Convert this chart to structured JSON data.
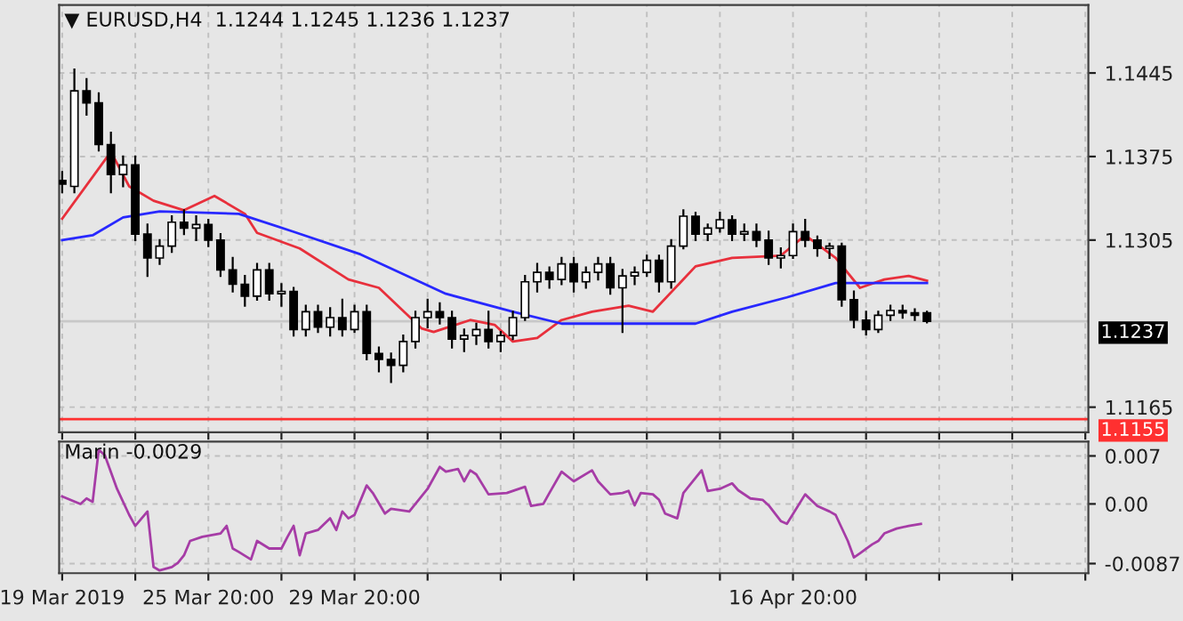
{
  "chart_data": [
    {
      "type": "candlestick",
      "title": "▼ EURUSD,H4  1.1244 1.1245 1.1236 1.1237",
      "grid": true,
      "legend": false,
      "tick_labels": "y",
      "categories": [
        null,
        null,
        null,
        null,
        null,
        null,
        null,
        null,
        null,
        null,
        null,
        null,
        null,
        null,
        null,
        null,
        null,
        null,
        null,
        null,
        null,
        null,
        null,
        null,
        null,
        null,
        null,
        null,
        null,
        null,
        null,
        null,
        null,
        null,
        null,
        null,
        null,
        null,
        null,
        null,
        null,
        null,
        null,
        null,
        null,
        null,
        null,
        null,
        null,
        null,
        null,
        null,
        null,
        null,
        null,
        null,
        null,
        null,
        null,
        null,
        null,
        null,
        null,
        null,
        null,
        null,
        null,
        null,
        null,
        null,
        null,
        null,
        null,
        null,
        null,
        null,
        null,
        null,
        null,
        null,
        null,
        null,
        null,
        null,
        null,
        null,
        null,
        null,
        null,
        null,
        null,
        null,
        null,
        null,
        null,
        null,
        null,
        null,
        null,
        null,
        null,
        null,
        null,
        null,
        null,
        null,
        null,
        null,
        null,
        null,
        null,
        null,
        null,
        null,
        null,
        null,
        null,
        null,
        null,
        null,
        null,
        null,
        null,
        null,
        null,
        null,
        null,
        null,
        null,
        null,
        null,
        null,
        null,
        null,
        null,
        null,
        null,
        null,
        null,
        null,
        null,
        null,
        null,
        null,
        null,
        null,
        null,
        null,
        null,
        null,
        null,
        null,
        null,
        null,
        null,
        null,
        null,
        null,
        null,
        null,
        null,
        null,
        null,
        null,
        null,
        null,
        null,
        null,
        null
      ],
      "ylim": [
        1.1144,
        1.1502
      ],
      "yticks": [
        1.1445,
        1.1375,
        1.1305,
        1.1165
      ],
      "ref_lines": [
        {
          "axis": "y",
          "value": 1.1237,
          "label": "1.1237",
          "color": "#c8c8c8"
        },
        {
          "axis": "y",
          "value": 1.1155,
          "label": "1.1155",
          "color": "#ff3030"
        }
      ],
      "series": [
        {
          "type": "candlestick",
          "color": "#000000",
          "ohlc": [
            [
              1.1355,
              1.1362,
              1.1345,
              1.1352
            ],
            null,
            [
              1.135,
              1.1448,
              1.1345,
              1.143
            ],
            null,
            [
              1.143,
              1.144,
              1.141,
              1.142
            ],
            null,
            [
              1.142,
              1.1428,
              1.138,
              1.1385
            ],
            null,
            [
              1.1385,
              1.1395,
              1.1345,
              1.136
            ],
            null,
            [
              1.136,
              1.1375,
              1.135,
              1.1368
            ],
            null,
            [
              1.1368,
              1.1375,
              1.1305,
              1.131
            ],
            null,
            [
              1.131,
              1.1318,
              1.1275,
              1.129
            ],
            null,
            [
              1.129,
              1.1305,
              1.1285,
              1.13
            ],
            null,
            [
              1.13,
              1.1325,
              1.1295,
              1.132
            ],
            null,
            [
              1.132,
              1.133,
              1.131,
              1.1315
            ],
            null,
            [
              1.1315,
              1.1325,
              1.1305,
              1.1318
            ],
            null,
            [
              1.1318,
              1.1322,
              1.13,
              1.1305
            ],
            null,
            [
              1.1305,
              1.131,
              1.1275,
              1.128
            ],
            null,
            [
              1.128,
              1.129,
              1.1262,
              1.1268
            ],
            null,
            [
              1.1268,
              1.1275,
              1.125,
              1.1258
            ],
            null,
            [
              1.1258,
              1.1285,
              1.1255,
              1.128
            ],
            null,
            [
              1.128,
              1.1285,
              1.1255,
              1.126
            ],
            null,
            [
              1.126,
              1.1268,
              1.125,
              1.1262
            ],
            null,
            [
              1.1262,
              1.1265,
              1.1225,
              1.123
            ],
            null,
            [
              1.123,
              1.125,
              1.1225,
              1.1245
            ],
            null,
            [
              1.1245,
              1.125,
              1.1228,
              1.1232
            ],
            null,
            [
              1.1232,
              1.1248,
              1.1225,
              1.124
            ],
            null,
            [
              1.124,
              1.1255,
              1.1225,
              1.123
            ],
            null,
            [
              1.123,
              1.125,
              1.1228,
              1.1245
            ],
            null,
            [
              1.1245,
              1.125,
              1.1205,
              1.121
            ],
            null,
            [
              1.121,
              1.1215,
              1.1195,
              1.1205
            ],
            null,
            [
              1.1205,
              1.121,
              1.1186,
              1.12
            ],
            null,
            [
              1.12,
              1.1225,
              1.1195,
              1.122
            ],
            null,
            [
              1.122,
              1.1245,
              1.1215,
              1.124
            ],
            null,
            [
              1.124,
              1.1255,
              1.1232,
              1.1245
            ],
            null,
            [
              1.1245,
              1.1252,
              1.1235,
              1.124
            ],
            null,
            [
              1.124,
              1.1245,
              1.1215,
              1.1222
            ],
            null,
            [
              1.1222,
              1.123,
              1.1212,
              1.1225
            ],
            null,
            [
              1.1225,
              1.1235,
              1.1218,
              1.123
            ],
            null,
            [
              1.123,
              1.1245,
              1.1215,
              1.122
            ],
            null,
            [
              1.122,
              1.1228,
              1.1212,
              1.1225
            ],
            null,
            [
              1.1225,
              1.1245,
              1.1222,
              1.124
            ],
            null,
            [
              1.124,
              1.1275,
              1.1238,
              1.127
            ],
            null,
            [
              1.127,
              1.1285,
              1.1262,
              1.1278
            ],
            null,
            [
              1.1278,
              1.1282,
              1.1265,
              1.1272
            ],
            null,
            [
              1.1272,
              1.129,
              1.1268,
              1.1285
            ],
            null,
            [
              1.1285,
              1.129,
              1.1262,
              1.127
            ],
            null,
            [
              1.127,
              1.1282,
              1.1265,
              1.1278
            ],
            null,
            [
              1.1278,
              1.129,
              1.1272,
              1.1285
            ],
            null,
            [
              1.1285,
              1.129,
              1.126,
              1.1265
            ],
            null,
            [
              1.1265,
              1.128,
              1.1228,
              1.1275
            ],
            null,
            [
              1.1275,
              1.1282,
              1.1268,
              1.1278
            ],
            null,
            [
              1.1278,
              1.1292,
              1.1275,
              1.1288
            ],
            null,
            [
              1.1288,
              1.1292,
              1.1262,
              1.127
            ],
            null,
            [
              1.127,
              1.1305,
              1.1265,
              1.13
            ],
            null,
            [
              1.13,
              1.133,
              1.1298,
              1.1325
            ],
            null,
            [
              1.1325,
              1.1328,
              1.1305,
              1.131
            ],
            null,
            [
              1.131,
              1.1318,
              1.1305,
              1.1315
            ],
            null,
            [
              1.1315,
              1.1328,
              1.1312,
              1.1322
            ],
            null,
            [
              1.1322,
              1.1325,
              1.1305,
              1.131
            ],
            null,
            [
              1.131,
              1.1318,
              1.1305,
              1.1312
            ],
            null,
            [
              1.1312,
              1.1318,
              1.13,
              1.1305
            ],
            null,
            [
              1.1305,
              1.1312,
              1.1285,
              1.129
            ],
            null,
            [
              1.129,
              1.1298,
              1.1282,
              1.1292
            ],
            null,
            [
              1.1292,
              1.1318,
              1.129,
              1.1312
            ],
            null,
            [
              1.1312,
              1.1322,
              1.13,
              1.1305
            ],
            null,
            [
              1.1305,
              1.1308,
              1.1292,
              1.1298
            ],
            null,
            [
              1.1298,
              1.1302,
              1.129,
              1.13
            ],
            null,
            [
              1.13,
              1.1302,
              1.125,
              1.1255
            ],
            null,
            [
              1.1255,
              1.1262,
              1.1232,
              1.1238
            ],
            null,
            [
              1.1238,
              1.1245,
              1.1226,
              1.123
            ],
            null,
            [
              1.123,
              1.1245,
              1.1228,
              1.1242
            ],
            null,
            [
              1.1242,
              1.125,
              1.1238,
              1.1246
            ],
            null,
            [
              1.1246,
              1.125,
              1.124,
              1.1244
            ],
            null,
            [
              1.1244,
              1.1247,
              1.1238,
              1.1242
            ],
            null,
            [
              1.1244,
              1.1245,
              1.1236,
              1.1237
            ],
            null,
            null,
            null,
            null,
            null,
            null,
            null,
            null,
            null,
            null,
            null,
            null,
            null,
            null,
            null,
            null,
            null,
            null,
            null,
            null,
            null,
            null,
            null,
            null,
            null,
            null
          ]
        },
        {
          "type": "line",
          "color": "#e8303c",
          "values": [
            1.1323,
            null,
            null,
            null,
            null,
            null,
            null,
            null,
            1.1379,
            null,
            null,
            1.135,
            null,
            null,
            null,
            1.1338,
            null,
            null,
            null,
            null,
            1.133,
            null,
            null,
            null,
            null,
            1.1342,
            null,
            null,
            null,
            null,
            1.1327,
            null,
            1.1311,
            null,
            null,
            null,
            null,
            null,
            null,
            1.1298,
            null,
            null,
            null,
            null,
            null,
            null,
            null,
            1.1272,
            null,
            null,
            null,
            null,
            1.1265,
            null,
            null,
            null,
            null,
            null,
            null,
            1.1231,
            null,
            1.1228,
            null,
            null,
            null,
            null,
            null,
            1.1238,
            null,
            null,
            null,
            1.1234,
            null,
            null,
            1.122,
            null,
            null,
            null,
            1.1223,
            null,
            null,
            null,
            1.1238,
            null,
            null,
            null,
            null,
            1.1245,
            null,
            null,
            null,
            null,
            null,
            1.125,
            null,
            null,
            null,
            1.1245,
            null,
            null,
            null,
            null,
            null,
            null,
            1.1283,
            null,
            null,
            null,
            null,
            null,
            1.129,
            null,
            null,
            null,
            null,
            null,
            null,
            null,
            1.1292,
            null,
            null,
            null,
            1.1309,
            null,
            null,
            null,
            null,
            1.129,
            null,
            null,
            null,
            1.1265,
            null,
            null,
            null,
            1.1272,
            null,
            null,
            null,
            1.1275,
            null,
            null,
            1.1271,
            null,
            null,
            null,
            null,
            null,
            null,
            null,
            null,
            null,
            null,
            null,
            null,
            null,
            null,
            null,
            null,
            null,
            null,
            null,
            null,
            null,
            null,
            null,
            null,
            null,
            null
          ]
        },
        {
          "type": "line",
          "color": "#2828ff",
          "values": [
            1.1305,
            null,
            null,
            null,
            null,
            1.1309,
            null,
            null,
            null,
            null,
            1.1324,
            null,
            null,
            null,
            null,
            null,
            1.1329,
            null,
            null,
            null,
            null,
            null,
            null,
            null,
            null,
            null,
            null,
            null,
            null,
            1.1327,
            null,
            null,
            null,
            null,
            null,
            null,
            null,
            null,
            1.1312,
            null,
            null,
            null,
            null,
            null,
            null,
            null,
            null,
            null,
            null,
            1.1293,
            null,
            null,
            null,
            null,
            null,
            null,
            null,
            null,
            null,
            null,
            null,
            null,
            null,
            1.126,
            null,
            null,
            null,
            null,
            null,
            null,
            null,
            null,
            null,
            null,
            1.1245,
            null,
            null,
            null,
            null,
            null,
            null,
            null,
            1.1235,
            null,
            null,
            null,
            null,
            null,
            null,
            null,
            null,
            null,
            null,
            null,
            null,
            null,
            1.1235,
            null,
            null,
            null,
            null,
            null,
            null,
            null,
            1.1235,
            null,
            null,
            null,
            null,
            null,
            1.1245,
            null,
            null,
            null,
            null,
            null,
            null,
            null,
            null,
            1.1257,
            null,
            null,
            null,
            null,
            null,
            null,
            null,
            1.1269,
            null,
            null,
            null,
            null,
            null,
            null,
            null,
            null,
            null,
            null,
            null,
            null,
            null,
            null,
            1.1269,
            null,
            null,
            null,
            null,
            null,
            null,
            null,
            null,
            null,
            null,
            null,
            null,
            null,
            null,
            null,
            null,
            null,
            null,
            null,
            null,
            null,
            null,
            null,
            null,
            null,
            null
          ]
        }
      ]
    },
    {
      "type": "line",
      "title": "Marin -0.0029",
      "grid": true,
      "legend": false,
      "categories": [
        "19 Mar 2019",
        null,
        null,
        null,
        null,
        null,
        null,
        null,
        null,
        null,
        null,
        null,
        null,
        null,
        null,
        null,
        null,
        null,
        null,
        null,
        null,
        null,
        null,
        null,
        "25 Mar 20:00",
        null,
        null,
        null,
        null,
        null,
        null,
        null,
        null,
        null,
        null,
        null,
        null,
        null,
        null,
        null,
        null,
        null,
        null,
        null,
        null,
        null,
        null,
        null,
        "29 Mar 20:00",
        null,
        null,
        null,
        null,
        null,
        null,
        null,
        null,
        null,
        null,
        null,
        null,
        null,
        null,
        null,
        null,
        null,
        null,
        null,
        null,
        null,
        null,
        null,
        null,
        null,
        null,
        null,
        null,
        null,
        null,
        null,
        null,
        null,
        null,
        null,
        null,
        null,
        null,
        null,
        null,
        null,
        null,
        null,
        null,
        null,
        null,
        null,
        null,
        null,
        null,
        null,
        null,
        null,
        null,
        null,
        null,
        null,
        null,
        null,
        null,
        null,
        null,
        null,
        null,
        null,
        null,
        null,
        null,
        null,
        null,
        null,
        "16 Apr 20:00",
        null,
        null,
        null,
        null,
        null,
        null,
        null,
        null,
        null,
        null,
        null,
        null,
        null,
        null,
        null,
        null,
        null,
        null,
        null,
        null,
        null,
        null,
        null,
        null,
        null,
        null,
        null,
        null,
        null,
        null,
        null,
        null,
        null,
        null,
        null,
        null,
        null,
        null,
        null,
        null,
        null,
        null,
        null,
        null,
        null,
        null,
        null,
        null
      ],
      "ylim": [
        -0.0101,
        0.0091
      ],
      "yticks": [
        0.007,
        {
          "value": 0,
          "label": "0.00"
        },
        {
          "value": -0.0087,
          "label": "-0.0087"
        }
      ],
      "series": [
        {
          "color": "#a63ca6",
          "values": [
            0.0011,
            null,
            null,
            0.0,
            0.0008,
            0.0003,
            0.0079,
            0.0071,
            null,
            0.0022,
            null,
            -0.0016,
            -0.0032,
            null,
            -0.0011,
            -0.0092,
            -0.0097,
            null,
            -0.0092,
            -0.0086,
            -0.0075,
            -0.0054,
            null,
            -0.0048,
            null,
            null,
            -0.0043,
            -0.0032,
            -0.0065,
            -0.007,
            null,
            -0.0081,
            -0.0054,
            null,
            -0.0065,
            null,
            -0.0065,
            -0.0048,
            -0.0032,
            -0.0075,
            -0.0043,
            null,
            -0.0038,
            null,
            -0.0021,
            -0.0038,
            -0.0011,
            -0.0021,
            -0.0016,
            null,
            0.0027,
            0.0016,
            null,
            -0.0014,
            -0.0007,
            null,
            null,
            -0.0011,
            0.0,
            null,
            0.0022,
            null,
            0.0054,
            0.0047,
            null,
            0.0051,
            0.0033,
            0.0049,
            0.0043,
            null,
            0.0014,
            null,
            null,
            0.0016,
            null,
            null,
            0.0025,
            -0.0003,
            null,
            0.0,
            0.0016,
            null,
            0.0047,
            null,
            0.0033,
            null,
            null,
            0.0049,
            0.0033,
            null,
            0.0014,
            null,
            0.0016,
            0.0019,
            -0.0002,
            0.0016,
            null,
            0.0014,
            0.0006,
            -0.0014,
            null,
            -0.0021,
            0.0016,
            0.0027,
            null,
            0.0049,
            0.0019,
            null,
            0.0022,
            null,
            0.003,
            0.002,
            null,
            0.0008,
            null,
            0.0006,
            -0.0002,
            null,
            -0.0025,
            -0.0029,
            null,
            null,
            0.0014,
            null,
            -0.0003,
            null,
            -0.0011,
            -0.0016,
            null,
            -0.0054,
            -0.0078,
            -0.0072,
            null,
            -0.0059,
            -0.0054,
            -0.0043,
            null,
            -0.0036,
            null,
            -0.0032,
            null,
            -0.0029,
            null,
            null,
            null,
            null,
            null,
            null,
            null,
            null,
            null,
            null,
            null,
            null,
            null,
            null,
            null,
            null,
            null,
            null,
            null,
            null,
            null,
            null,
            null,
            null,
            null,
            null,
            null
          ]
        }
      ]
    }
  ]
}
